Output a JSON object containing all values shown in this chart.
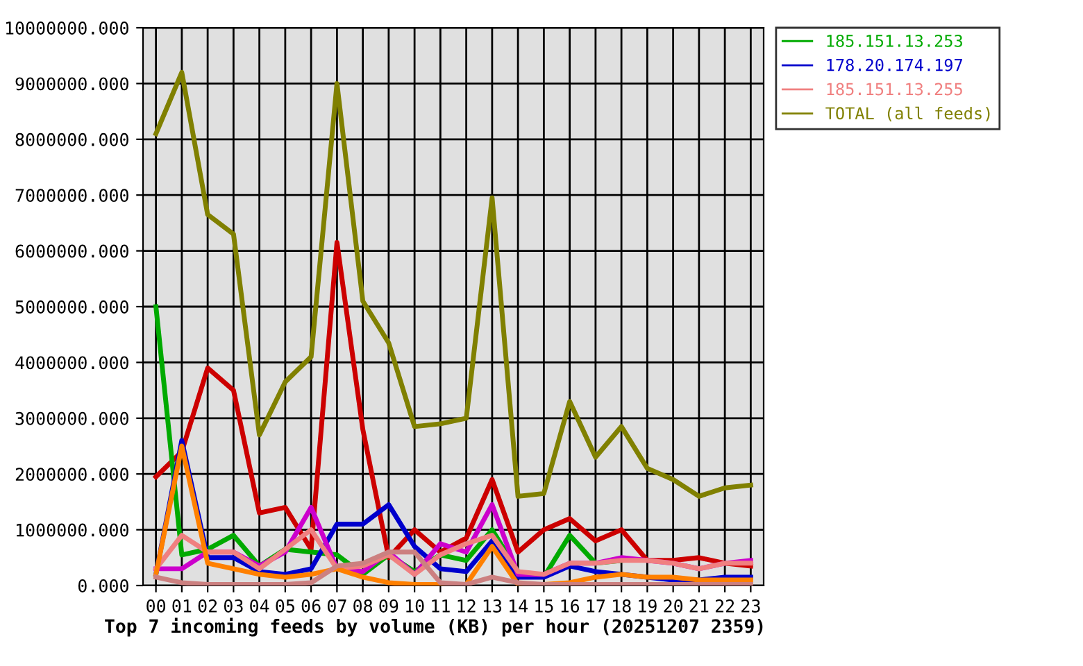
{
  "chart_data": {
    "type": "line",
    "title": "Top 7 incoming feeds by volume (KB) per hour (20251207 2359)",
    "categories": [
      "00",
      "01",
      "02",
      "03",
      "04",
      "05",
      "06",
      "07",
      "08",
      "09",
      "10",
      "11",
      "12",
      "13",
      "14",
      "15",
      "16",
      "17",
      "18",
      "19",
      "20",
      "21",
      "22",
      "23"
    ],
    "ylim": [
      0,
      10000000
    ],
    "yticks": [
      {
        "value": 0,
        "label": "0.000"
      },
      {
        "value": 1000000,
        "label": "1000000.000"
      },
      {
        "value": 2000000,
        "label": "2000000.000"
      },
      {
        "value": 3000000,
        "label": "3000000.000"
      },
      {
        "value": 4000000,
        "label": "4000000.000"
      },
      {
        "value": 5000000,
        "label": "5000000.000"
      },
      {
        "value": 6000000,
        "label": "6000000.000"
      },
      {
        "value": 7000000,
        "label": "7000000.000"
      },
      {
        "value": 8000000,
        "label": "8000000.000"
      },
      {
        "value": 9000000,
        "label": "9000000.000"
      },
      {
        "value": 10000000,
        "label": "10000000.000"
      }
    ],
    "grid": true,
    "legend": "top right",
    "series": [
      {
        "color": "#cc0000",
        "values": [
          1950000,
          2400000,
          3900000,
          3500000,
          1300000,
          1400000,
          650000,
          6150000,
          2800000,
          500000,
          1000000,
          600000,
          850000,
          1900000,
          600000,
          1000000,
          1200000,
          800000,
          1000000,
          450000,
          450000,
          500000,
          400000,
          350000
        ]
      },
      {
        "name": "185.151.13.253",
        "color": "#00aa00",
        "values": [
          5000000,
          550000,
          650000,
          900000,
          350000,
          650000,
          600000,
          550000,
          200000,
          550000,
          250000,
          550000,
          450000,
          1000000,
          250000,
          150000,
          900000,
          400000,
          450000,
          null,
          null,
          null,
          null,
          null
        ]
      },
      {
        "name": "178.20.174.197",
        "color": "#0000cc",
        "values": [
          200000,
          2600000,
          500000,
          500000,
          250000,
          200000,
          300000,
          1100000,
          1100000,
          1450000,
          700000,
          300000,
          250000,
          800000,
          150000,
          150000,
          350000,
          250000,
          200000,
          150000,
          100000,
          100000,
          150000,
          150000
        ]
      },
      {
        "color": "#cc00cc",
        "values": [
          300000,
          300000,
          600000,
          600000,
          350000,
          600000,
          1400000,
          300000,
          250000,
          600000,
          200000,
          750000,
          600000,
          1450000,
          200000,
          200000,
          400000,
          400000,
          500000,
          450000,
          400000,
          300000,
          400000,
          450000
        ]
      },
      {
        "name": "185.151.13.255",
        "color": "#f08080",
        "values": [
          300000,
          900000,
          600000,
          600000,
          300000,
          650000,
          1000000,
          300000,
          350000,
          550000,
          200000,
          550000,
          750000,
          900000,
          250000,
          200000,
          400000,
          400000,
          450000,
          450000,
          400000,
          300000,
          400000,
          400000
        ]
      },
      {
        "color": "#ff8000",
        "values": [
          200000,
          2500000,
          400000,
          300000,
          200000,
          150000,
          200000,
          300000,
          150000,
          50000,
          20000,
          20000,
          20000,
          700000,
          20000,
          20000,
          50000,
          150000,
          200000,
          150000,
          150000,
          100000,
          100000,
          100000
        ]
      },
      {
        "color": "#cc8080",
        "values": [
          150000,
          50000,
          20000,
          20000,
          20000,
          20000,
          50000,
          350000,
          400000,
          600000,
          600000,
          50000,
          20000,
          150000,
          50000,
          20000,
          20000,
          20000,
          20000,
          20000,
          20000,
          20000,
          20000,
          20000
        ]
      },
      {
        "name": "TOTAL (all feeds)",
        "color": "#808000",
        "values": [
          8100000,
          9200000,
          6650000,
          6300000,
          2700000,
          3650000,
          4100000,
          9000000,
          5100000,
          4350000,
          2850000,
          2900000,
          3000000,
          6950000,
          1600000,
          1650000,
          3300000,
          2300000,
          2850000,
          2100000,
          1900000,
          1600000,
          1750000,
          1800000
        ]
      }
    ]
  }
}
